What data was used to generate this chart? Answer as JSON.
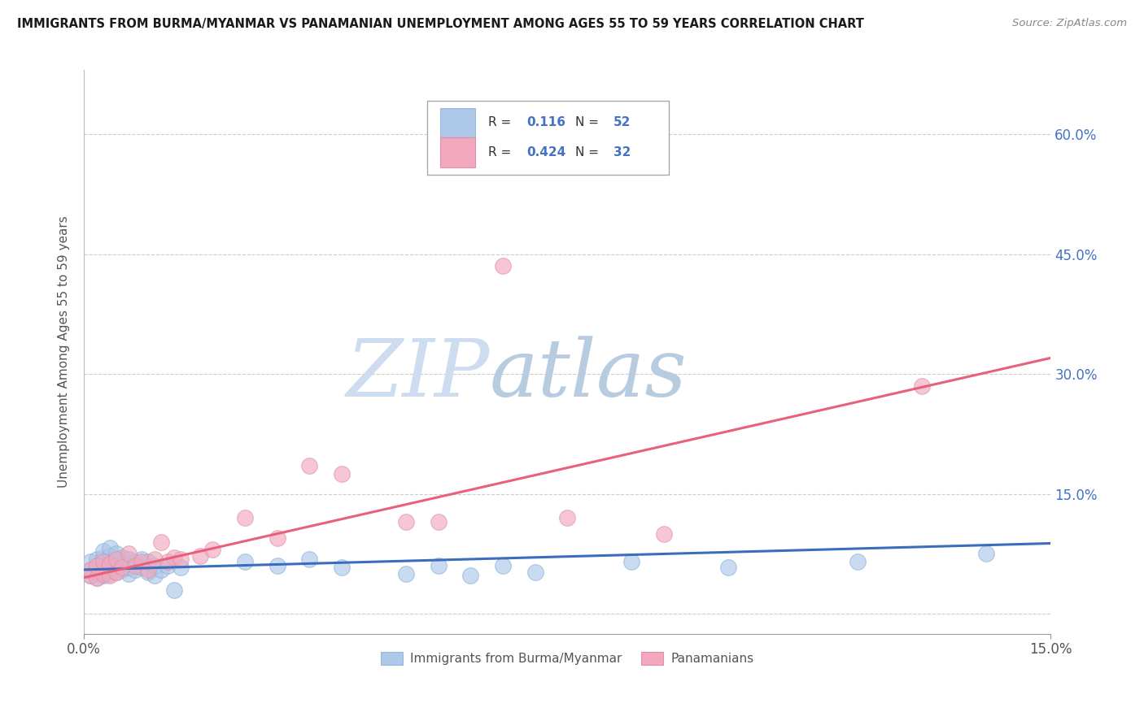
{
  "title": "IMMIGRANTS FROM BURMA/MYANMAR VS PANAMANIAN UNEMPLOYMENT AMONG AGES 55 TO 59 YEARS CORRELATION CHART",
  "source": "Source: ZipAtlas.com",
  "ylabel": "Unemployment Among Ages 55 to 59 years",
  "yticks": [
    0.0,
    0.15,
    0.3,
    0.45,
    0.6
  ],
  "ytick_labels": [
    "",
    "15.0%",
    "30.0%",
    "45.0%",
    "60.0%"
  ],
  "xlim": [
    0.0,
    0.15
  ],
  "ylim": [
    -0.025,
    0.68
  ],
  "blue_R": "0.116",
  "blue_N": "52",
  "pink_R": "0.424",
  "pink_N": "32",
  "blue_color": "#adc8e8",
  "pink_color": "#f2a8be",
  "blue_line_color": "#3b6dbf",
  "pink_line_color": "#e8607a",
  "watermark_ZIP": "ZIP",
  "watermark_atlas": "atlas",
  "watermark_color_ZIP": "#cddcee",
  "watermark_color_atlas": "#b8cce0",
  "blue_legend_label": "Immigrants from Burma/Myanmar",
  "pink_legend_label": "Panamanians",
  "blue_x": [
    0.001,
    0.001,
    0.001,
    0.002,
    0.002,
    0.002,
    0.002,
    0.003,
    0.003,
    0.003,
    0.003,
    0.003,
    0.004,
    0.004,
    0.004,
    0.004,
    0.004,
    0.005,
    0.005,
    0.005,
    0.005,
    0.006,
    0.006,
    0.006,
    0.007,
    0.007,
    0.007,
    0.008,
    0.008,
    0.009,
    0.009,
    0.01,
    0.01,
    0.011,
    0.011,
    0.012,
    0.013,
    0.014,
    0.015,
    0.025,
    0.03,
    0.035,
    0.04,
    0.05,
    0.055,
    0.06,
    0.065,
    0.07,
    0.085,
    0.1,
    0.12,
    0.14
  ],
  "blue_y": [
    0.048,
    0.055,
    0.065,
    0.045,
    0.052,
    0.06,
    0.068,
    0.048,
    0.055,
    0.062,
    0.07,
    0.078,
    0.05,
    0.058,
    0.065,
    0.072,
    0.082,
    0.052,
    0.06,
    0.068,
    0.075,
    0.055,
    0.062,
    0.07,
    0.05,
    0.058,
    0.068,
    0.055,
    0.065,
    0.058,
    0.068,
    0.052,
    0.065,
    0.048,
    0.06,
    0.055,
    0.06,
    0.03,
    0.058,
    0.065,
    0.06,
    0.068,
    0.058,
    0.05,
    0.06,
    0.048,
    0.06,
    0.052,
    0.065,
    0.058,
    0.065,
    0.075
  ],
  "pink_x": [
    0.001,
    0.001,
    0.002,
    0.002,
    0.003,
    0.003,
    0.004,
    0.004,
    0.005,
    0.005,
    0.006,
    0.007,
    0.008,
    0.009,
    0.01,
    0.011,
    0.012,
    0.013,
    0.014,
    0.015,
    0.018,
    0.02,
    0.025,
    0.03,
    0.035,
    0.04,
    0.05,
    0.055,
    0.065,
    0.075,
    0.09,
    0.13
  ],
  "pink_y": [
    0.048,
    0.055,
    0.045,
    0.06,
    0.05,
    0.065,
    0.048,
    0.062,
    0.052,
    0.068,
    0.058,
    0.075,
    0.06,
    0.065,
    0.055,
    0.068,
    0.09,
    0.065,
    0.07,
    0.068,
    0.072,
    0.08,
    0.12,
    0.095,
    0.185,
    0.175,
    0.115,
    0.115,
    0.435,
    0.12,
    0.1,
    0.285
  ]
}
